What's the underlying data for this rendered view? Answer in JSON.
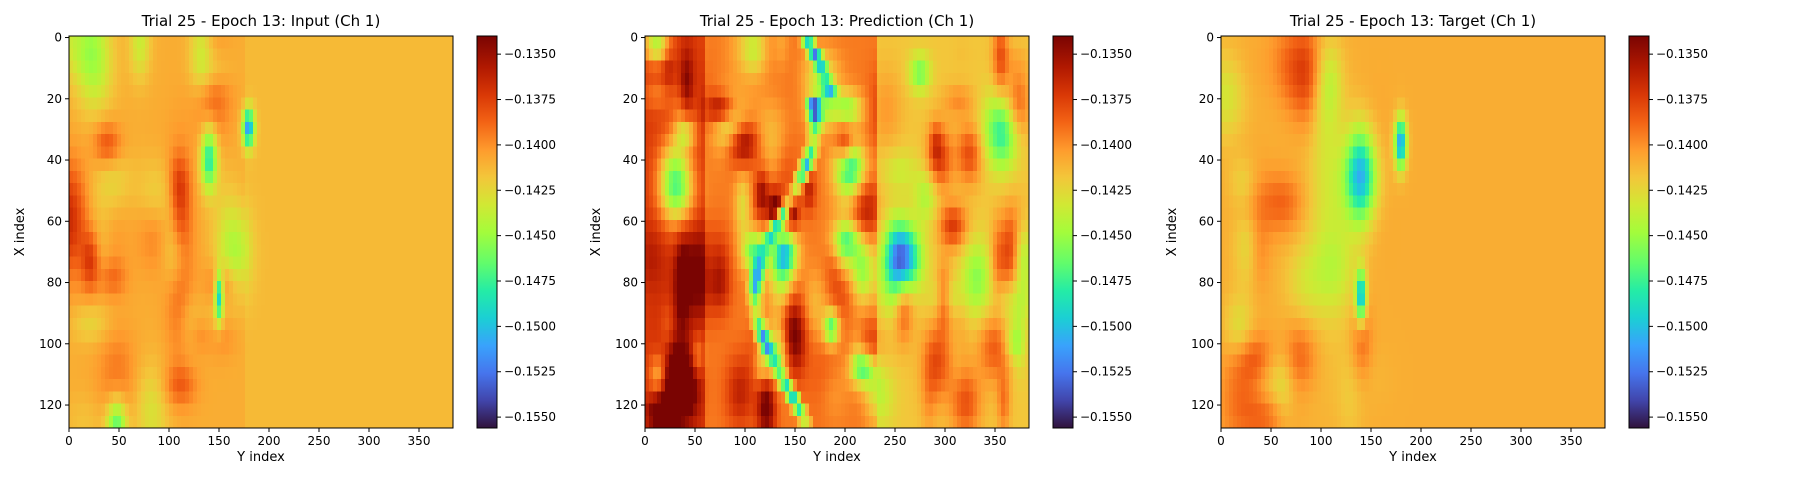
{
  "colors": {
    "colormap": "turbo",
    "background": "#ffffff",
    "axis": "#000000"
  },
  "chart_data": [
    {
      "type": "heatmap",
      "title": "Trial 25 - Epoch 13: Input (Ch 1)",
      "xlabel": "Y index",
      "ylabel": "X index",
      "xlim": [
        0,
        383
      ],
      "ylim": [
        127,
        0
      ],
      "xticks": [
        "0",
        "50",
        "100",
        "150",
        "200",
        "250",
        "300",
        "350"
      ],
      "yticks": [
        "0",
        "20",
        "40",
        "60",
        "80",
        "100",
        "120"
      ],
      "grid": false,
      "colorbar": {
        "vmin": -0.1556,
        "vmax": -0.134,
        "ticks": [
          "−0.1350",
          "−0.1375",
          "−0.1400",
          "−0.1425",
          "−0.1450",
          "−0.1475",
          "−0.1500",
          "−0.1525",
          "−0.1550"
        ]
      }
    },
    {
      "type": "heatmap",
      "title": "Trial 25 - Epoch 13: Prediction (Ch 1)",
      "xlabel": "Y index",
      "ylabel": "X index",
      "xlim": [
        0,
        383
      ],
      "ylim": [
        127,
        0
      ],
      "xticks": [
        "0",
        "50",
        "100",
        "150",
        "200",
        "250",
        "300",
        "350"
      ],
      "yticks": [
        "0",
        "20",
        "40",
        "60",
        "80",
        "100",
        "120"
      ],
      "grid": false,
      "colorbar": {
        "vmin": -0.1556,
        "vmax": -0.134,
        "ticks": [
          "−0.1350",
          "−0.1375",
          "−0.1400",
          "−0.1425",
          "−0.1450",
          "−0.1475",
          "−0.1500",
          "−0.1525",
          "−0.1550"
        ]
      }
    },
    {
      "type": "heatmap",
      "title": "Trial 25 - Epoch 13: Target (Ch 1)",
      "xlabel": "Y index",
      "ylabel": "X index",
      "xlim": [
        0,
        383
      ],
      "ylim": [
        127,
        0
      ],
      "xticks": [
        "0",
        "50",
        "100",
        "150",
        "200",
        "250",
        "300",
        "350"
      ],
      "yticks": [
        "0",
        "20",
        "40",
        "60",
        "80",
        "100",
        "120"
      ],
      "grid": false,
      "colorbar": {
        "vmin": -0.1556,
        "vmax": -0.134,
        "ticks": [
          "−0.1350",
          "−0.1375",
          "−0.1400",
          "−0.1425",
          "−0.1450",
          "−0.1475",
          "−0.1500",
          "−0.1525",
          "−0.1550"
        ]
      }
    }
  ]
}
